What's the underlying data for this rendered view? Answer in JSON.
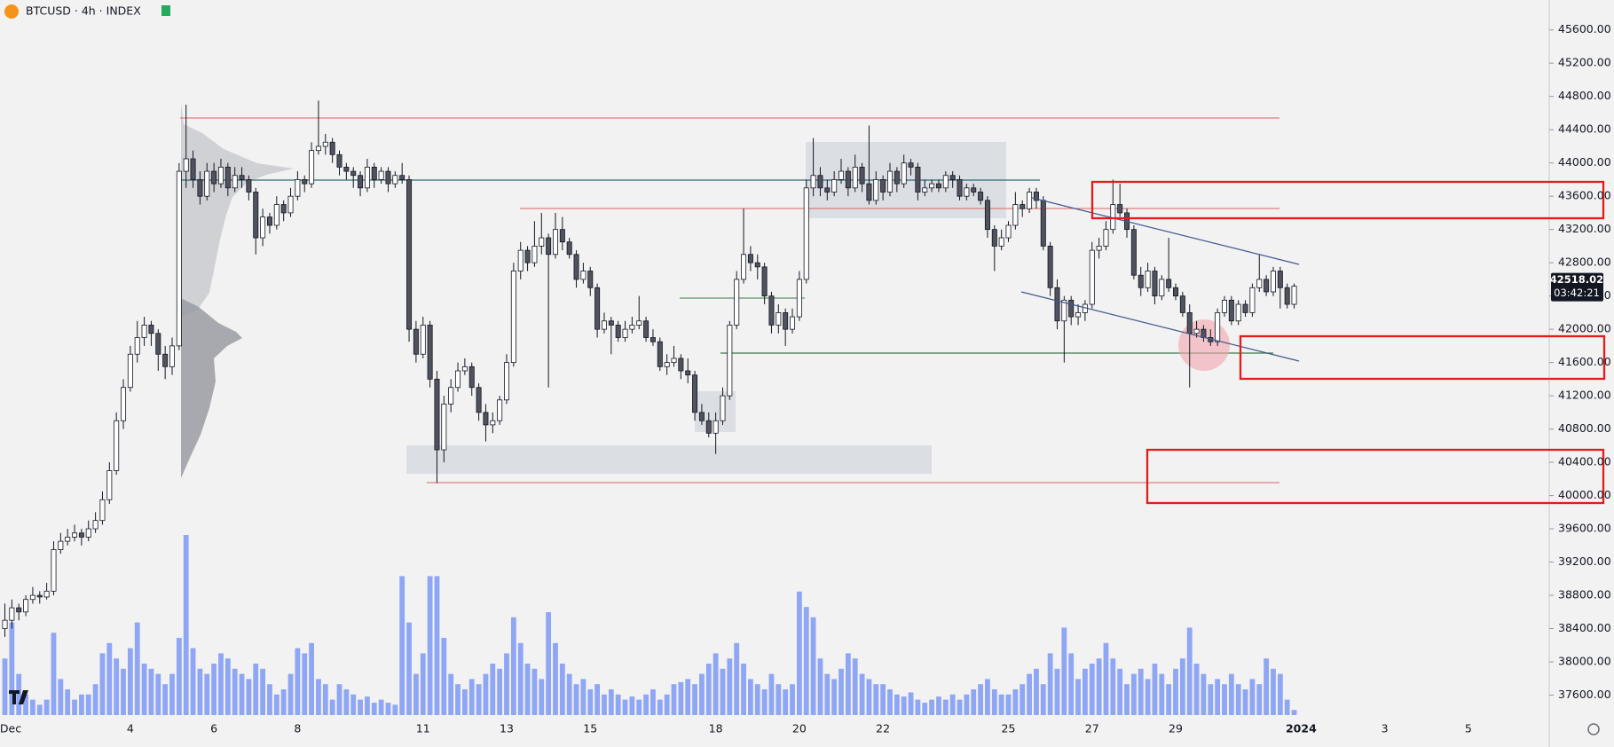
{
  "chart_data": {
    "type": "candlestick",
    "title": "BTCUSD · 4h · INDEX",
    "countdown": "03:42:21",
    "up_color": "#ffffff",
    "down_color": "#50535e",
    "outline_color": "#131722",
    "volume_color": "#8ea6f4",
    "xlim": [
      -0.7,
      221.6
    ],
    "ylim": [
      37360,
      45960
    ],
    "xticks": [
      {
        "value": 0,
        "label": "Dec"
      },
      {
        "value": 18,
        "label": "4"
      },
      {
        "value": 30,
        "label": "6"
      },
      {
        "value": 42,
        "label": "8"
      },
      {
        "value": 60,
        "label": "11"
      },
      {
        "value": 72,
        "label": "13"
      },
      {
        "value": 84,
        "label": "15"
      },
      {
        "value": 102,
        "label": "18"
      },
      {
        "value": 114,
        "label": "20"
      },
      {
        "value": 126,
        "label": "22"
      },
      {
        "value": 144,
        "label": "25"
      },
      {
        "value": 156,
        "label": "27"
      },
      {
        "value": 168,
        "label": "29"
      },
      {
        "value": 186,
        "label": "2024"
      },
      {
        "value": 198,
        "label": "3"
      },
      {
        "value": 210,
        "label": "5"
      }
    ],
    "yticks": [
      {
        "value": 37600,
        "label": "37600.00"
      },
      {
        "value": 38000,
        "label": "38000.00"
      },
      {
        "value": 38400,
        "label": "38400.00"
      },
      {
        "value": 38800,
        "label": "38800.00"
      },
      {
        "value": 39200,
        "label": "39200.00"
      },
      {
        "value": 39600,
        "label": "39600.00"
      },
      {
        "value": 40000,
        "label": "40000.00"
      },
      {
        "value": 40400,
        "label": "40400.00"
      },
      {
        "value": 40800,
        "label": "40800.00"
      },
      {
        "value": 41200,
        "label": "41200.00"
      },
      {
        "value": 41600,
        "label": "41600.00"
      },
      {
        "value": 42000,
        "label": "42000.00"
      },
      {
        "value": 42400,
        "label": "42400.00"
      },
      {
        "value": 42800,
        "label": "42800.00"
      },
      {
        "value": 43200,
        "label": "43200.00"
      },
      {
        "value": 43600,
        "label": "43600.00"
      },
      {
        "value": 44000,
        "label": "44000.00"
      },
      {
        "value": 44400,
        "label": "44400.00"
      },
      {
        "value": 44800,
        "label": "44800.00"
      },
      {
        "value": 45200,
        "label": "45200.00"
      },
      {
        "value": 45600,
        "label": "45600.00"
      }
    ],
    "candles": [
      [
        38400,
        38700,
        38300,
        38500
      ],
      [
        38500,
        38750,
        38400,
        38650
      ],
      [
        38650,
        38700,
        38500,
        38600
      ],
      [
        38600,
        38800,
        38550,
        38750
      ],
      [
        38750,
        38900,
        38700,
        38800
      ],
      [
        38800,
        38850,
        38700,
        38780
      ],
      [
        38780,
        38950,
        38750,
        38850
      ],
      [
        38850,
        39450,
        38800,
        39350
      ],
      [
        39350,
        39550,
        39300,
        39450
      ],
      [
        39450,
        39600,
        39400,
        39500
      ],
      [
        39500,
        39650,
        39450,
        39550
      ],
      [
        39550,
        39600,
        39400,
        39500
      ],
      [
        39500,
        39700,
        39450,
        39600
      ],
      [
        39600,
        39800,
        39550,
        39700
      ],
      [
        39700,
        40050,
        39650,
        39950
      ],
      [
        39950,
        40400,
        39900,
        40300
      ],
      [
        40300,
        41000,
        40250,
        40900
      ],
      [
        40900,
        41400,
        40800,
        41300
      ],
      [
        41300,
        41800,
        41250,
        41700
      ],
      [
        41700,
        42100,
        41600,
        41900
      ],
      [
        41900,
        42150,
        41800,
        42050
      ],
      [
        42050,
        42100,
        41800,
        41950
      ],
      [
        41950,
        42000,
        41500,
        41700
      ],
      [
        41700,
        41800,
        41400,
        41550
      ],
      [
        41550,
        41900,
        41450,
        41800
      ],
      [
        41800,
        44000,
        41750,
        43900
      ],
      [
        43900,
        44700,
        43700,
        44050
      ],
      [
        44050,
        44150,
        43700,
        43800
      ],
      [
        43800,
        43900,
        43500,
        43600
      ],
      [
        43600,
        44000,
        43550,
        43900
      ],
      [
        43900,
        44000,
        43650,
        43750
      ],
      [
        43750,
        44050,
        43700,
        43950
      ],
      [
        43950,
        44000,
        43600,
        43700
      ],
      [
        43700,
        43950,
        43650,
        43850
      ],
      [
        43850,
        43950,
        43700,
        43800
      ],
      [
        43800,
        43850,
        43550,
        43650
      ],
      [
        43650,
        43700,
        42900,
        43100
      ],
      [
        43100,
        43450,
        43000,
        43350
      ],
      [
        43350,
        43400,
        43150,
        43250
      ],
      [
        43250,
        43600,
        43200,
        43500
      ],
      [
        43500,
        43550,
        43300,
        43400
      ],
      [
        43400,
        43700,
        43350,
        43600
      ],
      [
        43600,
        43900,
        43550,
        43800
      ],
      [
        43800,
        43850,
        43650,
        43750
      ],
      [
        43750,
        44250,
        43700,
        44150
      ],
      [
        44150,
        44750,
        44100,
        44200
      ],
      [
        44200,
        44350,
        44100,
        44250
      ],
      [
        44250,
        44300,
        44000,
        44100
      ],
      [
        44100,
        44150,
        43850,
        43950
      ],
      [
        43950,
        44000,
        43800,
        43900
      ],
      [
        43900,
        43950,
        43700,
        43850
      ],
      [
        43850,
        43900,
        43600,
        43700
      ],
      [
        43700,
        44050,
        43650,
        43950
      ],
      [
        43950,
        44000,
        43700,
        43800
      ],
      [
        43800,
        43950,
        43750,
        43900
      ],
      [
        43900,
        43950,
        43650,
        43750
      ],
      [
        43750,
        43900,
        43700,
        43850
      ],
      [
        43850,
        44000,
        43750,
        43800
      ],
      [
        43800,
        43850,
        41850,
        42000
      ],
      [
        42000,
        42100,
        41600,
        41700
      ],
      [
        41700,
        42150,
        41650,
        42050
      ],
      [
        42050,
        42100,
        41300,
        41400
      ],
      [
        41400,
        41500,
        40150,
        40550
      ],
      [
        40550,
        41200,
        40400,
        41100
      ],
      [
        41100,
        41400,
        41000,
        41300
      ],
      [
        41300,
        41600,
        41250,
        41500
      ],
      [
        41500,
        41650,
        41450,
        41550
      ],
      [
        41550,
        41600,
        41200,
        41300
      ],
      [
        41300,
        41350,
        40900,
        41000
      ],
      [
        41000,
        41100,
        40650,
        40850
      ],
      [
        40850,
        41000,
        40750,
        40900
      ],
      [
        40900,
        41200,
        40850,
        41150
      ],
      [
        41150,
        41700,
        41100,
        41600
      ],
      [
        41600,
        42800,
        41550,
        42700
      ],
      [
        42700,
        43050,
        42600,
        42950
      ],
      [
        42950,
        43000,
        42700,
        42800
      ],
      [
        42800,
        43300,
        42750,
        43000
      ],
      [
        43000,
        43400,
        42900,
        43100
      ],
      [
        43100,
        43150,
        41300,
        42900
      ],
      [
        42900,
        43400,
        42850,
        43200
      ],
      [
        43200,
        43350,
        42950,
        43050
      ],
      [
        43050,
        43100,
        42850,
        42900
      ],
      [
        42900,
        42950,
        42500,
        42600
      ],
      [
        42600,
        42800,
        42550,
        42700
      ],
      [
        42700,
        42750,
        42400,
        42500
      ],
      [
        42500,
        42550,
        41900,
        42000
      ],
      [
        42000,
        42200,
        41950,
        42100
      ],
      [
        42100,
        42150,
        41700,
        42050
      ],
      [
        42050,
        42100,
        41850,
        41900
      ],
      [
        41900,
        42100,
        41850,
        42000
      ],
      [
        42000,
        42150,
        41950,
        42050
      ],
      [
        42050,
        42400,
        42000,
        42100
      ],
      [
        42100,
        42150,
        41850,
        41900
      ],
      [
        41900,
        42000,
        41800,
        41850
      ],
      [
        41850,
        41900,
        41500,
        41550
      ],
      [
        41550,
        41700,
        41450,
        41600
      ],
      [
        41600,
        41800,
        41550,
        41650
      ],
      [
        41650,
        41700,
        41400,
        41500
      ],
      [
        41500,
        41650,
        41350,
        41450
      ],
      [
        41450,
        41500,
        40900,
        41000
      ],
      [
        41000,
        41100,
        40850,
        40900
      ],
      [
        40900,
        41000,
        40700,
        40750
      ],
      [
        40750,
        41000,
        40500,
        40900
      ],
      [
        40900,
        41300,
        40850,
        41200
      ],
      [
        41200,
        42100,
        41150,
        42050
      ],
      [
        42050,
        42700,
        42000,
        42600
      ],
      [
        42600,
        43450,
        42550,
        42900
      ],
      [
        42900,
        43000,
        42700,
        42800
      ],
      [
        42800,
        42900,
        42600,
        42750
      ],
      [
        42750,
        42800,
        42300,
        42400
      ],
      [
        42400,
        42450,
        41950,
        42050
      ],
      [
        42050,
        42300,
        41950,
        42200
      ],
      [
        42200,
        42250,
        41800,
        42000
      ],
      [
        42000,
        42250,
        41950,
        42150
      ],
      [
        42150,
        42700,
        42100,
        42600
      ],
      [
        42600,
        43800,
        42550,
        43700
      ],
      [
        43700,
        44300,
        43600,
        43850
      ],
      [
        43850,
        43950,
        43600,
        43700
      ],
      [
        43700,
        43800,
        43550,
        43650
      ],
      [
        43650,
        43900,
        43600,
        43800
      ],
      [
        43800,
        44050,
        43750,
        43900
      ],
      [
        43900,
        43950,
        43600,
        43700
      ],
      [
        43700,
        44100,
        43650,
        43950
      ],
      [
        43950,
        44000,
        43650,
        43750
      ],
      [
        43750,
        44450,
        43500,
        43550
      ],
      [
        43550,
        43900,
        43500,
        43800
      ],
      [
        43800,
        43850,
        43550,
        43650
      ],
      [
        43650,
        44000,
        43600,
        43900
      ],
      [
        43900,
        43950,
        43650,
        43750
      ],
      [
        43750,
        44100,
        43700,
        44000
      ],
      [
        44000,
        44050,
        43850,
        43950
      ],
      [
        43950,
        44000,
        43550,
        43650
      ],
      [
        43650,
        43800,
        43600,
        43700
      ],
      [
        43700,
        43800,
        43650,
        43750
      ],
      [
        43750,
        43800,
        43650,
        43700
      ],
      [
        43700,
        43900,
        43650,
        43850
      ],
      [
        43850,
        43900,
        43700,
        43800
      ],
      [
        43800,
        43850,
        43550,
        43600
      ],
      [
        43600,
        43750,
        43550,
        43700
      ],
      [
        43700,
        43750,
        43600,
        43650
      ],
      [
        43650,
        43700,
        43500,
        43550
      ],
      [
        43550,
        43600,
        43100,
        43200
      ],
      [
        43200,
        43250,
        42700,
        43000
      ],
      [
        43000,
        43200,
        42950,
        43100
      ],
      [
        43100,
        43300,
        43050,
        43250
      ],
      [
        43250,
        43650,
        43200,
        43500
      ],
      [
        43500,
        43550,
        43350,
        43450
      ],
      [
        43450,
        43700,
        43400,
        43650
      ],
      [
        43650,
        43700,
        43450,
        43550
      ],
      [
        43550,
        43600,
        42950,
        43000
      ],
      [
        43000,
        43050,
        42400,
        42500
      ],
      [
        42500,
        42600,
        42000,
        42100
      ],
      [
        42100,
        42400,
        41600,
        42350
      ],
      [
        42350,
        42400,
        42050,
        42150
      ],
      [
        42150,
        42300,
        42050,
        42200
      ],
      [
        42200,
        42350,
        42100,
        42300
      ],
      [
        42300,
        43050,
        42250,
        42950
      ],
      [
        42950,
        43100,
        42850,
        43000
      ],
      [
        43000,
        43300,
        42950,
        43200
      ],
      [
        43200,
        43800,
        43150,
        43500
      ],
      [
        43500,
        43750,
        43350,
        43400
      ],
      [
        43400,
        43450,
        43100,
        43200
      ],
      [
        43200,
        43250,
        42600,
        42650
      ],
      [
        42650,
        42750,
        42400,
        42500
      ],
      [
        42500,
        42800,
        42450,
        42700
      ],
      [
        42700,
        42750,
        42300,
        42400
      ],
      [
        42400,
        42650,
        42350,
        42600
      ],
      [
        42600,
        43100,
        42450,
        42500
      ],
      [
        42500,
        42550,
        42350,
        42400
      ],
      [
        42400,
        42450,
        42150,
        42200
      ],
      [
        42200,
        42300,
        41300,
        41950
      ],
      [
        41950,
        42100,
        41900,
        42000
      ],
      [
        42000,
        42050,
        41850,
        41900
      ],
      [
        41900,
        42000,
        41800,
        41850
      ],
      [
        41850,
        42250,
        41800,
        42200
      ],
      [
        42200,
        42400,
        42150,
        42350
      ],
      [
        42350,
        42400,
        42050,
        42100
      ],
      [
        42100,
        42350,
        42050,
        42300
      ],
      [
        42300,
        42350,
        42150,
        42200
      ],
      [
        42200,
        42550,
        42150,
        42500
      ],
      [
        42500,
        42900,
        42450,
        42600
      ],
      [
        42600,
        42650,
        42400,
        42450
      ],
      [
        42450,
        42750,
        42400,
        42700
      ],
      [
        42700,
        42750,
        42250,
        42500
      ],
      [
        42500,
        42550,
        42250,
        42300
      ],
      [
        42300,
        42550,
        42250,
        42518.02
      ]
    ],
    "volume": [
      55,
      90,
      40,
      20,
      15,
      10,
      15,
      80,
      35,
      25,
      15,
      20,
      20,
      30,
      60,
      70,
      55,
      45,
      65,
      90,
      50,
      45,
      40,
      30,
      40,
      75,
      175,
      65,
      45,
      40,
      50,
      60,
      55,
      45,
      40,
      35,
      50,
      45,
      30,
      20,
      25,
      40,
      65,
      60,
      70,
      35,
      30,
      15,
      30,
      25,
      20,
      15,
      18,
      12,
      15,
      12,
      10,
      135,
      90,
      40,
      60,
      135,
      135,
      75,
      40,
      30,
      25,
      35,
      30,
      40,
      50,
      45,
      60,
      95,
      70,
      50,
      45,
      35,
      100,
      70,
      50,
      40,
      30,
      35,
      25,
      30,
      20,
      25,
      20,
      15,
      18,
      15,
      20,
      25,
      15,
      20,
      30,
      32,
      35,
      30,
      40,
      50,
      60,
      45,
      55,
      70,
      50,
      35,
      30,
      25,
      40,
      30,
      25,
      30,
      120,
      105,
      95,
      55,
      40,
      35,
      45,
      60,
      55,
      40,
      35,
      30,
      30,
      25,
      20,
      18,
      22,
      15,
      12,
      15,
      18,
      15,
      20,
      15,
      20,
      25,
      30,
      35,
      25,
      20,
      20,
      25,
      30,
      40,
      45,
      30,
      60,
      45,
      85,
      60,
      35,
      45,
      50,
      55,
      70,
      55,
      45,
      30,
      40,
      45,
      35,
      50,
      40,
      30,
      45,
      55,
      85,
      50,
      40,
      30,
      35,
      30,
      40,
      30,
      25,
      35,
      30,
      55,
      45,
      40,
      15,
      5
    ]
  }
}
